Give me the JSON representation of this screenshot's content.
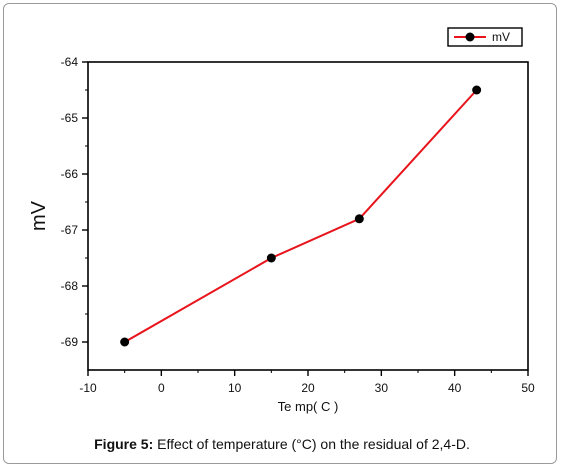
{
  "chart_data": {
    "type": "line",
    "xlabel": "Te mp( C )",
    "ylabel": "mV",
    "xlim": [
      -10,
      50
    ],
    "ylim": [
      -69.5,
      -64
    ],
    "x_ticks": [
      "-10",
      "0",
      "10",
      "20",
      "30",
      "40",
      "50"
    ],
    "y_ticks": [
      "-64",
      "-65",
      "-66",
      "-67",
      "-68",
      "-69"
    ],
    "grid": false,
    "legend_position": "top-right",
    "series": [
      {
        "name": "mV",
        "color": "#e8141b",
        "marker": "circle",
        "x": [
          -5,
          15,
          27,
          43
        ],
        "y": [
          -69.0,
          -67.5,
          -66.8,
          -64.5
        ]
      }
    ]
  },
  "caption": {
    "label": "Figure 5:",
    "text": " Effect of temperature (°C) on the residual of 2,4-D."
  }
}
